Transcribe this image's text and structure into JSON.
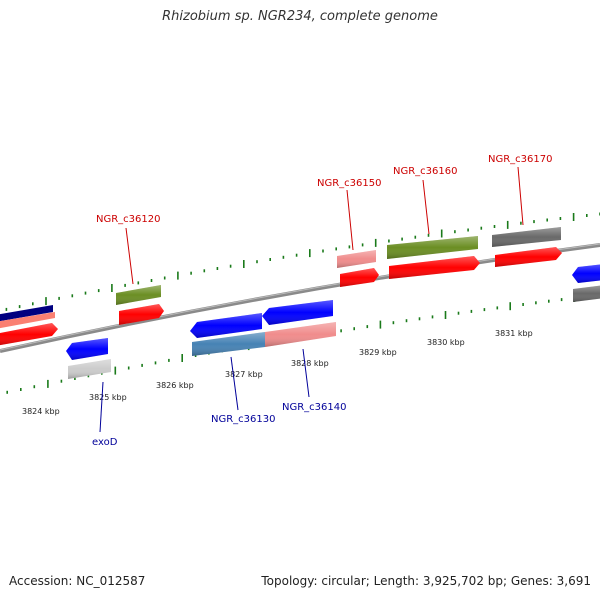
{
  "title": "Rhizobium sp. NGR234, complete genome",
  "footer": {
    "accession": "Accession: NC_012587",
    "topology": "Topology: circular; Length: 3,925,702 bp; Genes: 3,691"
  },
  "scale_labels": [
    "3824 kbp",
    "3825 kbp",
    "3826 kbp",
    "3827 kbp",
    "3828 kbp",
    "3829 kbp",
    "3830 kbp",
    "3831 kbp"
  ],
  "colors": {
    "backbone": "#8a8a8a",
    "red_label": "#cc0000",
    "blue_label": "#000099",
    "red_gene": "#ff0000",
    "pink_gene": "#f08c8c",
    "olive_gene": "#6b8e23",
    "gray_gene": "#696969",
    "blue_gene": "#0000ff",
    "steel_gene": "#4682b4",
    "light_gray_gene": "#cccccc",
    "navy_gene": "#000080",
    "salmon_gene": "#fa8072",
    "tick": "#1a7a1a"
  },
  "gene_labels": {
    "NGR_c36120": "NGR_c36120",
    "NGR_c36150": "NGR_c36150",
    "NGR_c36160": "NGR_c36160",
    "NGR_c36170": "NGR_c36170",
    "NGR_c36130": "NGR_c36130",
    "NGR_c36140": "NGR_c36140",
    "exoD": "exoD"
  }
}
